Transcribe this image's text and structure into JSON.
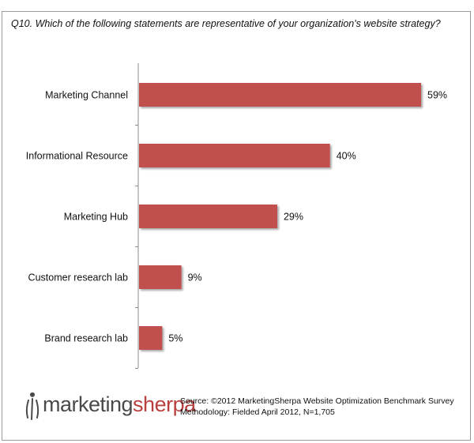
{
  "question": "Q10. Which of the following statements are representative of your organization's website strategy?",
  "chart_data": {
    "type": "bar",
    "orientation": "horizontal",
    "categories": [
      "Marketing Channel",
      "Informational Resource",
      "Marketing Hub",
      "Customer research lab",
      "Brand research lab"
    ],
    "values": [
      59,
      40,
      29,
      9,
      5
    ],
    "value_labels": [
      "59%",
      "40%",
      "29%",
      "9%",
      "5%"
    ],
    "unit": "%",
    "xlim": [
      0,
      59
    ],
    "grid": false,
    "legend": "none",
    "bar_color": "#c0504d"
  },
  "logo": {
    "part1": "marketing",
    "part2": "sherpa"
  },
  "source": {
    "line1": "Source: ©2012 MarketingSherpa Website Optimization Benchmark Survey",
    "line2": "Methodology: Fielded April 2012, N=1,705"
  }
}
